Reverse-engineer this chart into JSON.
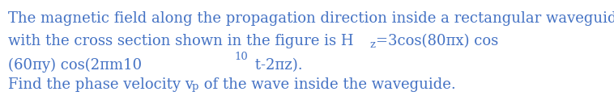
{
  "background_color": "#ffffff",
  "text_color": "#4472c4",
  "fontsize": 13.0,
  "fontsize_small": 9.5,
  "fig_width": 7.58,
  "fig_height": 1.24,
  "dpi": 100,
  "line1": "The magnetic field along the propagation direction inside a rectangular waveguide",
  "line2a": "with the cross section shown in the figure is H",
  "line2b": "=3cos(80πx) cos",
  "line3a": "(60πy) cos(2πm10",
  "line3b": " t-2πz).",
  "line4a": "Find the phase velocity v",
  "line4b": " of the wave inside the waveguide."
}
